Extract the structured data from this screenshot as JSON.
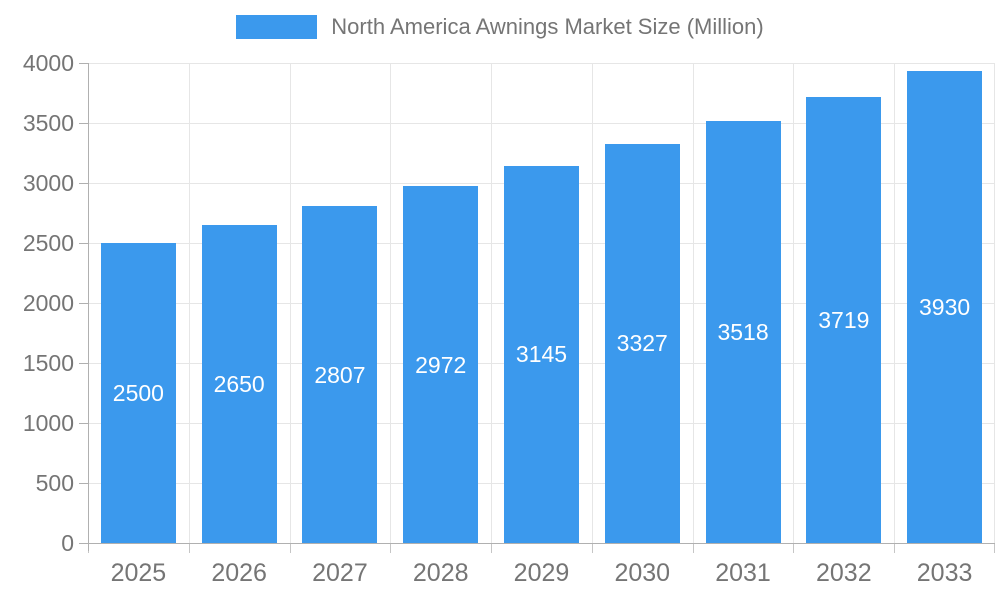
{
  "legend": {
    "label": "North America Awnings Market Size (Million)"
  },
  "chart_data": {
    "type": "bar",
    "title": "North America Awnings Market Size (Million)",
    "categories": [
      "2025",
      "2026",
      "2027",
      "2028",
      "2029",
      "2030",
      "2031",
      "2032",
      "2033"
    ],
    "series": [
      {
        "name": "North America Awnings Market Size (Million)",
        "values": [
          2500,
          2650,
          2807,
          2972,
          3145,
          3327,
          3518,
          3719,
          3930
        ]
      }
    ],
    "xlabel": "",
    "ylabel": "",
    "ylim": [
      0,
      4000
    ],
    "ytick_step": 500,
    "yticks": [
      0,
      500,
      1000,
      1500,
      2000,
      2500,
      3000,
      3500,
      4000
    ],
    "grid": true,
    "legend_position": "top",
    "data_labels": "inside-center"
  },
  "colors": {
    "bar": "#3B99ED",
    "bar_label": "#FFFFFF",
    "gridline": "#E6E6E6",
    "axis_line": "#B0B0B0",
    "tick_mark": "#C6C6C6",
    "axis_text": "#757575",
    "background": "#FFFFFF"
  }
}
